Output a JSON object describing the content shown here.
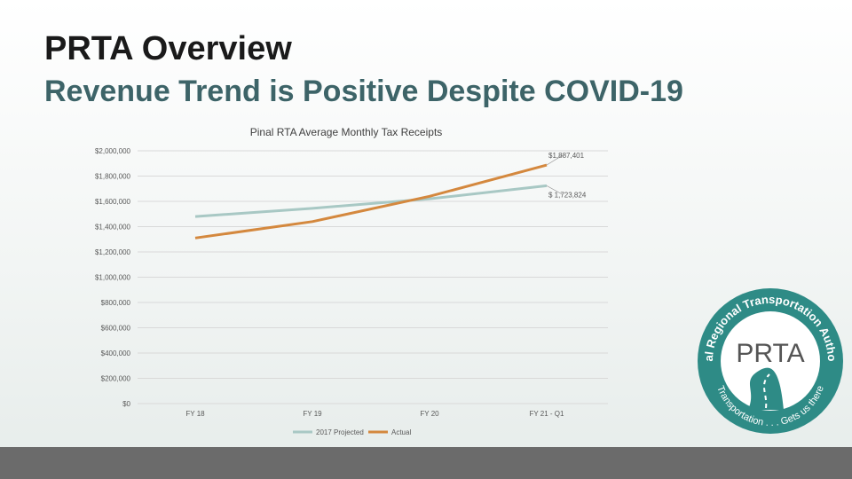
{
  "slide": {
    "title": "PRTA Overview",
    "subtitle": "Revenue Trend is Positive Despite COVID-19"
  },
  "logo": {
    "ring_text_top": "Pinal Regional Transportation Authority",
    "ring_text_bottom": "Transportation . . . Gets us there",
    "center_letters": "PRTA",
    "ring_color": "#2e8b86",
    "accent_color": "#3a9a94"
  },
  "chart_data": {
    "type": "line",
    "title": "Pinal RTA Average Monthly Tax Receipts",
    "categories": [
      "FY 18",
      "FY 19",
      "FY 20",
      "FY 21 - Q1"
    ],
    "ylim": [
      0,
      2000000
    ],
    "yticks": [
      0,
      200000,
      400000,
      600000,
      800000,
      1000000,
      1200000,
      1400000,
      1600000,
      1800000,
      2000000
    ],
    "ytick_labels": [
      "$0",
      "$200,000",
      "$400,000",
      "$600,000",
      "$800,000",
      "$1,000,000",
      "$1,200,000",
      "$1,400,000",
      "$1,600,000",
      "$1,800,000",
      "$2,000,000"
    ],
    "legend_position": "bottom",
    "series": [
      {
        "name": "2017 Projected",
        "color": "#a8c8c4",
        "values": [
          1480000,
          1545000,
          1620000,
          1723824
        ],
        "end_label": "$ 1,723,824"
      },
      {
        "name": "Actual",
        "color": "#d4883e",
        "values": [
          1310000,
          1440000,
          1640000,
          1887401
        ],
        "end_label": "$1,887,401"
      }
    ]
  }
}
